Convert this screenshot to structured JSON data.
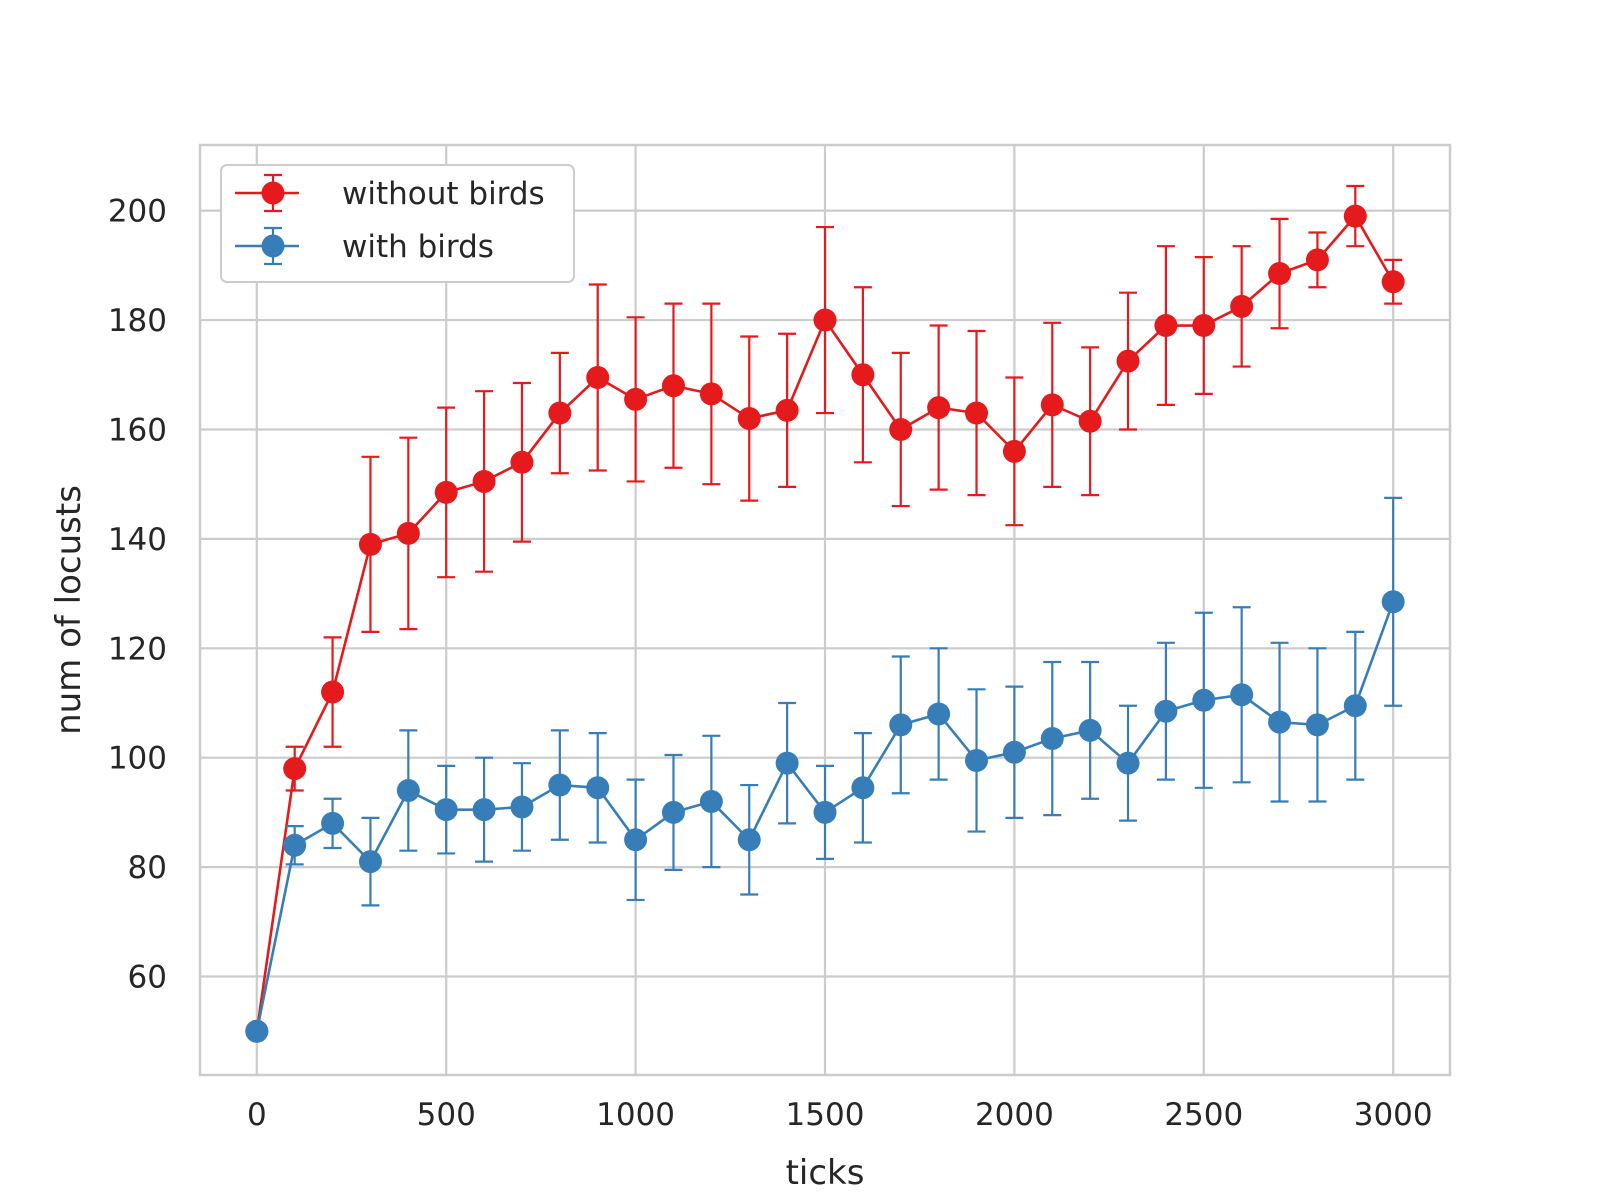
{
  "chart_data": {
    "type": "line",
    "title": "",
    "xlabel": "ticks",
    "ylabel": "num of locusts",
    "xlim": [
      -150,
      3150
    ],
    "ylim": [
      42,
      212
    ],
    "xticks": [
      0,
      500,
      1000,
      1500,
      2000,
      2500,
      3000
    ],
    "yticks": [
      60,
      80,
      100,
      120,
      140,
      160,
      180,
      200
    ],
    "xtick_labels": [
      "0",
      "500",
      "1000",
      "1500",
      "2000",
      "2500",
      "3000"
    ],
    "ytick_labels": [
      "60",
      "80",
      "100",
      "120",
      "140",
      "160",
      "180",
      "200"
    ],
    "grid": true,
    "legend_position": "upper-left",
    "x": [
      0,
      100,
      200,
      300,
      400,
      500,
      600,
      700,
      800,
      900,
      1000,
      1100,
      1200,
      1300,
      1400,
      1500,
      1600,
      1700,
      1800,
      1900,
      2000,
      2100,
      2200,
      2300,
      2400,
      2500,
      2600,
      2700,
      2800,
      2900,
      3000
    ],
    "series": [
      {
        "name": "without birds",
        "color": "#e41a1c",
        "values": [
          50,
          98,
          112,
          139,
          141,
          148.5,
          150.5,
          154,
          163,
          169.5,
          165.5,
          168,
          166.5,
          162,
          163.5,
          180,
          170,
          160,
          164,
          163,
          156,
          164.5,
          161.5,
          172.5,
          179,
          179,
          182.5,
          188.5,
          191,
          199,
          187
        ],
        "error": [
          0,
          4,
          10,
          16,
          17.5,
          15.5,
          16.5,
          14.5,
          11,
          17,
          15,
          15,
          16.5,
          15,
          14,
          17,
          16,
          14,
          15,
          15,
          13.5,
          15,
          13.5,
          12.5,
          14.5,
          12.5,
          11,
          10,
          5,
          5.5,
          4
        ]
      },
      {
        "name": "with birds",
        "color": "#377eb8",
        "values": [
          50,
          84,
          88,
          81,
          94,
          90.5,
          90.5,
          91,
          95,
          94.5,
          85,
          90,
          92,
          85,
          99,
          90,
          94.5,
          106,
          108,
          99.5,
          101,
          103.5,
          105,
          99,
          108.5,
          110.5,
          111.5,
          106.5,
          106,
          109.5,
          128.5
        ],
        "error": [
          0,
          3.5,
          4.5,
          8,
          11,
          8,
          9.5,
          8,
          10,
          10,
          11,
          10.5,
          12,
          10,
          11,
          8.5,
          10,
          12.5,
          12,
          13,
          12,
          14,
          12.5,
          10.5,
          12.5,
          16,
          16,
          14.5,
          14,
          13.5,
          19
        ]
      }
    ]
  }
}
